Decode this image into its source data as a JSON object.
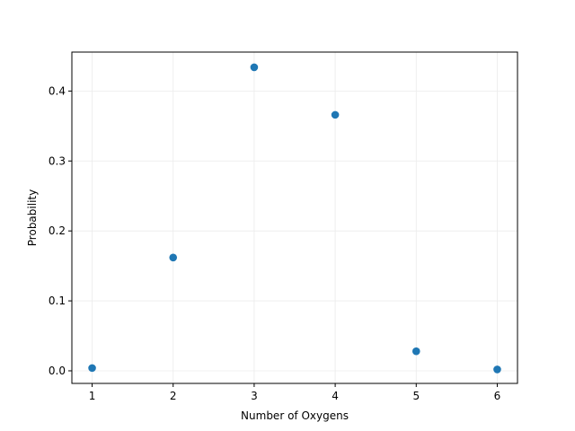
{
  "chart_data": {
    "type": "scatter",
    "title": "",
    "xlabel": "Number of Oxygens",
    "ylabel": "Probability",
    "x": [
      1,
      2,
      3,
      4,
      5,
      6
    ],
    "y": [
      0.004,
      0.162,
      0.434,
      0.366,
      0.028,
      0.002
    ],
    "xlim": [
      0.75,
      6.25
    ],
    "ylim": [
      -0.018,
      0.4557
    ],
    "xticks": [
      1,
      2,
      3,
      4,
      5,
      6
    ],
    "xtick_labels": [
      "1",
      "2",
      "3",
      "4",
      "5",
      "6"
    ],
    "yticks": [
      0.0,
      0.1,
      0.2,
      0.3,
      0.4
    ],
    "ytick_labels": [
      "0.0",
      "0.1",
      "0.2",
      "0.3",
      "0.4"
    ],
    "grid": true,
    "legend": "none",
    "colors": {
      "marker": "#1f77b4",
      "grid": "#ebebeb",
      "axes": "#000000"
    }
  }
}
